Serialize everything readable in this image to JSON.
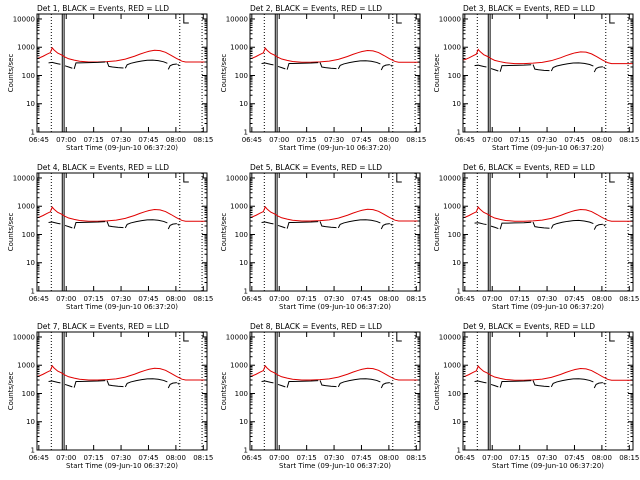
{
  "chart_data": {
    "type": "line",
    "title_suffix": "BLACK = Events, RED = LLD",
    "xlabel": "Start Time (09-Jun-10 06:37:20)",
    "ylabel": "Counts/sec",
    "yscale": "log",
    "ylim": [
      1,
      15000
    ],
    "xlim_minutes": [
      6.67,
      99.7
    ],
    "x_tick_labels": [
      "06:45",
      "07:00",
      "07:15",
      "07:30",
      "07:45",
      "08:00",
      "08:15"
    ],
    "x_tick_minutes": [
      7.67,
      22.67,
      37.67,
      52.67,
      67.67,
      82.67,
      97.67
    ],
    "y_tick_labels": [
      "1",
      "10",
      "100",
      "1000",
      "10000"
    ],
    "y_tick_values": [
      1,
      10,
      100,
      1000,
      10000
    ],
    "vertical_markers_minutes": {
      "dotted": [
        14.5,
        84.8,
        97.0
      ],
      "solid": [
        20.5,
        21.5
      ],
      "flag": 87.0
    },
    "colors": {
      "events": "#000000",
      "lld": "#e00000"
    },
    "panels": [
      {
        "title": "Det 1",
        "lld_scale": 1.0,
        "events_scale": 1.0
      },
      {
        "title": "Det 2",
        "lld_scale": 0.98,
        "events_scale": 0.95
      },
      {
        "title": "Det 3",
        "lld_scale": 0.88,
        "events_scale": 0.8
      },
      {
        "title": "Det 4",
        "lld_scale": 0.98,
        "events_scale": 0.95
      },
      {
        "title": "Det 5",
        "lld_scale": 1.0,
        "events_scale": 0.95
      },
      {
        "title": "Det 6",
        "lld_scale": 0.98,
        "events_scale": 0.9
      },
      {
        "title": "Det 7",
        "lld_scale": 1.0,
        "events_scale": 0.95
      },
      {
        "title": "Det 8",
        "lld_scale": 1.0,
        "events_scale": 0.95
      },
      {
        "title": "Det 9",
        "lld_scale": 0.98,
        "events_scale": 0.95
      }
    ],
    "series": [
      {
        "name": "LLD",
        "x": [
          6.67,
          8,
          10,
          12,
          14,
          15,
          16,
          18,
          20,
          22,
          24,
          27,
          30,
          35,
          40,
          45,
          50,
          55,
          60,
          63,
          66,
          68,
          71,
          74,
          77,
          80,
          83,
          86,
          88,
          90,
          95,
          99.7
        ],
        "values": [
          400,
          420,
          480,
          560,
          650,
          950,
          800,
          620,
          540,
          450,
          390,
          350,
          320,
          300,
          300,
          310,
          330,
          380,
          480,
          570,
          660,
          720,
          780,
          760,
          660,
          520,
          400,
          320,
          300,
          300,
          300,
          300
        ]
      },
      {
        "name": "Events",
        "segments": [
          {
            "x": [
              13,
              15,
              16,
              18,
              19.5
            ],
            "values": [
              280,
              290,
              280,
              260,
              250
            ]
          },
          {
            "x": [
              22,
              24,
              26
            ],
            "values": [
              220,
              200,
              180
            ]
          },
          {
            "x": [
              27,
              28,
              30,
              35,
              40,
              44
            ],
            "values": [
              170,
              280,
              280,
              285,
              290,
              300
            ]
          },
          {
            "x": [
              45,
              46,
              48,
              51,
              54
            ],
            "values": [
              305,
              210,
              200,
              190,
              185
            ]
          },
          {
            "x": [
              55,
              56,
              58,
              61,
              64,
              67,
              70,
              73,
              76,
              78
            ],
            "values": [
              180,
              240,
              270,
              300,
              325,
              345,
              350,
              335,
              305,
              270
            ]
          },
          {
            "x": [
              78.5,
              79.5,
              81,
              83.2
            ],
            "values": [
              165,
              220,
              245,
              255
            ]
          },
          {
            "x": [
              83.6,
              84.5
            ],
            "values": [
              250,
              220
            ]
          }
        ]
      }
    ]
  }
}
